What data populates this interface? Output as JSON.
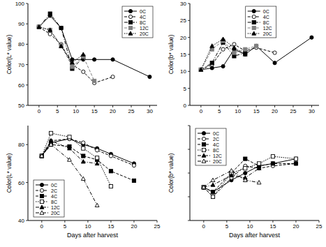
{
  "chart_data": [
    {
      "type": "line",
      "y_label": "Color(L* value)",
      "x": [
        0,
        3,
        6,
        9,
        12,
        15,
        20,
        30
      ],
      "xlim": [
        -3,
        32
      ],
      "xticks": [
        0,
        5,
        10,
        15,
        20,
        25,
        30
      ],
      "ylim": [
        50,
        100
      ],
      "yticks": [
        50,
        60,
        70,
        80,
        90,
        100
      ],
      "legend": "upper right",
      "series": [
        {
          "name": "0C",
          "color": "#000000",
          "marker": "circle",
          "line_style": "solid",
          "values": [
            88.5,
            94,
            88,
            72.5,
            72.5,
            72.5,
            72.5,
            64
          ]
        },
        {
          "name": "4C",
          "color": "#000000",
          "marker": "circle-open",
          "line_style": "dashed",
          "values": [
            88.5,
            85,
            80,
            70,
            66.5,
            61,
            64,
            null
          ]
        },
        {
          "name": "8C",
          "color": "#000000",
          "marker": "square",
          "line_style": "dashdot",
          "values": [
            88.5,
            95,
            88,
            68,
            73.5,
            null,
            null,
            null
          ]
        },
        {
          "name": "12C",
          "color": "#808080",
          "marker": "square",
          "line_style": "dashed",
          "values": [
            88.5,
            87,
            79.5,
            69,
            74,
            62,
            null,
            null
          ]
        },
        {
          "name": "20C",
          "color": "#000000",
          "marker": "triangle",
          "line_style": "dotted",
          "values": [
            88.5,
            87,
            79,
            71,
            75,
            null,
            null,
            null
          ]
        }
      ]
    },
    {
      "type": "line",
      "y_label": "Color(b* value)",
      "x": [
        0,
        3,
        6,
        9,
        12,
        15,
        20,
        30
      ],
      "xlim": [
        -3,
        32
      ],
      "xticks": [
        0,
        5,
        10,
        15,
        20,
        25,
        30
      ],
      "ylim": [
        0,
        30
      ],
      "yticks": [
        0,
        5,
        10,
        15,
        20,
        25,
        30
      ],
      "legend": "upper center",
      "series": [
        {
          "name": "0C",
          "color": "#000000",
          "marker": "circle",
          "line_style": "solid",
          "values": [
            10.5,
            11,
            11.5,
            16.5,
            15,
            17.5,
            12.5,
            20
          ]
        },
        {
          "name": "4C",
          "color": "#000000",
          "marker": "circle-open",
          "line_style": "dashed",
          "values": [
            10.5,
            12,
            16.5,
            18,
            16,
            17,
            15.5,
            null
          ]
        },
        {
          "name": "8C",
          "color": "#000000",
          "marker": "square",
          "line_style": "dashdot",
          "values": [
            10.5,
            12.5,
            18.5,
            14.5,
            15.5,
            null,
            null,
            null
          ]
        },
        {
          "name": "12C",
          "color": "#808080",
          "marker": "square",
          "line_style": "dashed",
          "values": [
            10.5,
            16.5,
            19,
            15.5,
            16.5,
            17.5,
            null,
            null
          ]
        },
        {
          "name": "20C",
          "color": "#000000",
          "marker": "triangle",
          "line_style": "dotted",
          "values": [
            10.5,
            17.5,
            19.5,
            17,
            15,
            null,
            null,
            null
          ]
        }
      ]
    },
    {
      "type": "line",
      "y_label": "Color(L* value)",
      "x_label": "Days after harvest",
      "x": [
        0,
        2,
        6,
        9,
        12,
        15,
        20
      ],
      "xlim": [
        -3,
        25
      ],
      "xticks": [
        0,
        5,
        10,
        15,
        20,
        25
      ],
      "ylim": [
        40,
        90
      ],
      "yticks": [
        40,
        60,
        80
      ],
      "legend": "lower left",
      "series": [
        {
          "name": "0C",
          "color": "#000000",
          "marker": "circle",
          "line_style": "solid",
          "values": [
            74,
            81,
            83,
            80,
            78,
            75,
            70
          ]
        },
        {
          "name": "2C",
          "color": "#000000",
          "marker": "circle-open",
          "line_style": "dashed",
          "values": [
            74,
            82,
            83,
            81,
            77,
            74,
            69
          ]
        },
        {
          "name": "4C",
          "color": "#000000",
          "marker": "square",
          "line_style": "dashed",
          "values": [
            74,
            80,
            79,
            74,
            72,
            66,
            61
          ]
        },
        {
          "name": "8C",
          "color": "#000000",
          "marker": "square-open",
          "line_style": "dotted",
          "values": [
            74,
            86,
            84,
            78,
            73,
            58,
            null
          ]
        },
        {
          "name": "12C",
          "color": "#000000",
          "marker": "triangle",
          "line_style": "dashdot",
          "values": [
            74,
            82,
            78,
            71,
            70,
            null,
            null
          ]
        },
        {
          "name": "20C",
          "color": "#000000",
          "marker": "triangle-open",
          "line_style": "dashdot",
          "values": [
            74,
            80,
            72,
            62,
            48,
            null,
            null
          ]
        }
      ]
    },
    {
      "type": "line",
      "y_label": "Color(b* value)",
      "x_label": "Days after harvest",
      "x": [
        0,
        2,
        6,
        9,
        12,
        15,
        20
      ],
      "xlim": [
        -3,
        25
      ],
      "xticks": [
        0,
        5,
        10,
        15,
        20,
        25
      ],
      "ylim": [
        5,
        25
      ],
      "yticks": [
        5,
        10,
        15,
        20,
        25
      ],
      "tick_labels": "x",
      "legend": "upper left",
      "series": [
        {
          "name": "0C",
          "color": "#000000",
          "marker": "circle",
          "line_style": "solid",
          "values": [
            12,
            11,
            13.5,
            15,
            16.5,
            17,
            18
          ]
        },
        {
          "name": "2C",
          "color": "#000000",
          "marker": "circle-open",
          "line_style": "dashed",
          "values": [
            12,
            10,
            14,
            16.5,
            16,
            16.5,
            17
          ]
        },
        {
          "name": "4C",
          "color": "#000000",
          "marker": "square",
          "line_style": "dashed",
          "values": [
            12,
            11,
            15,
            18,
            16.5,
            17,
            17
          ]
        },
        {
          "name": "8C",
          "color": "#000000",
          "marker": "square-open",
          "line_style": "dotted",
          "values": [
            12,
            10,
            15,
            16,
            17,
            18.5,
            18
          ]
        },
        {
          "name": "12C",
          "color": "#000000",
          "marker": "triangle",
          "line_style": "dashdot",
          "values": [
            12,
            12.5,
            14.5,
            14,
            16,
            null,
            null
          ]
        },
        {
          "name": "20C",
          "color": "#000000",
          "marker": "triangle-open",
          "line_style": "dashdot",
          "values": [
            12,
            13.5,
            15.5,
            13.5,
            13,
            null,
            null
          ]
        }
      ]
    }
  ]
}
